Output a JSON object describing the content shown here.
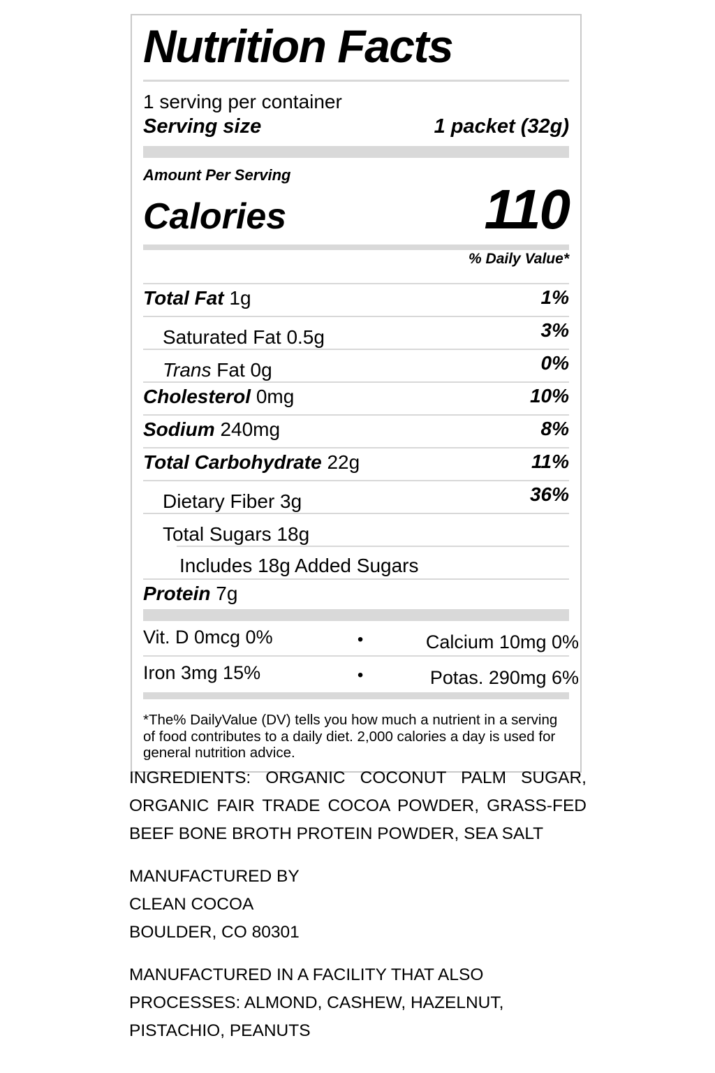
{
  "colors": {
    "bar_gray": "#d9d9d9",
    "divider_gray": "#d8d8d8",
    "border_gray": "#c9c9c9",
    "text": "#000000"
  },
  "label": {
    "title": "Nutrition Facts",
    "servings_per_container": "1 serving per container",
    "serving_size": {
      "label": "Serving size",
      "value": "1 packet (32g)"
    },
    "amount_per_serving": "Amount Per Serving",
    "calories": {
      "label": "Calories",
      "value": "110"
    },
    "daily_value_header": "% Daily Value*",
    "nutrients": [
      {
        "name": "Total Fat",
        "amount": "1g",
        "dv": "1%"
      },
      {
        "name": "Saturated Fat",
        "amount": "0.5g",
        "dv": "3%"
      },
      {
        "name": "Trans",
        "amount": "Fat 0g",
        "dv": "0%"
      },
      {
        "name": "Cholesterol",
        "amount": "0mg",
        "dv": "10%"
      },
      {
        "name": "Sodium",
        "amount": "240mg",
        "dv": "8%"
      },
      {
        "name": "Total Carbohydrate",
        "amount": "22g",
        "dv": "11%"
      },
      {
        "name": "Dietary Fiber",
        "amount": "3g",
        "dv": "36%"
      },
      {
        "name": "Total Sugars",
        "amount": "18g",
        "dv": ""
      },
      {
        "name": "Includes 18g Added Sugars",
        "amount": "",
        "dv": ""
      },
      {
        "name": "Protein",
        "amount": "7g",
        "dv": ""
      }
    ],
    "micronutrients": {
      "bullet": "•",
      "rows": [
        {
          "left": "Vit. D 0mcg 0%",
          "right": "Calcium 10mg 0%"
        },
        {
          "left": "Iron 3mg 15%",
          "right": "Potas. 290mg 6%"
        }
      ]
    },
    "footnote_lines": [
      "*The% DailyValue (DV) tells you how much a nutrient in a serving",
      "of food contributes to a daily diet. 2,000 calories a day is used for",
      "general nutrition advice."
    ]
  },
  "bottom": {
    "ingredients_lines": [
      "INGREDIENTS: ORGANIC COCONUT PALM SUGAR,",
      "ORGANIC FAIR TRADE COCOA POWDER, GRASS-FED",
      "BEEF BONE BROTH PROTEIN POWDER, SEA SALT"
    ],
    "manufacturer_lines": [
      "MANUFACTURED BY",
      "CLEAN COCOA",
      "BOULDER, CO 80301"
    ],
    "facility_lines": [
      "MANUFACTURED IN A FACILITY THAT ALSO",
      "PROCESSES: ALMOND, CASHEW, HAZELNUT,",
      "PISTACHIO, PEANUTS"
    ]
  }
}
